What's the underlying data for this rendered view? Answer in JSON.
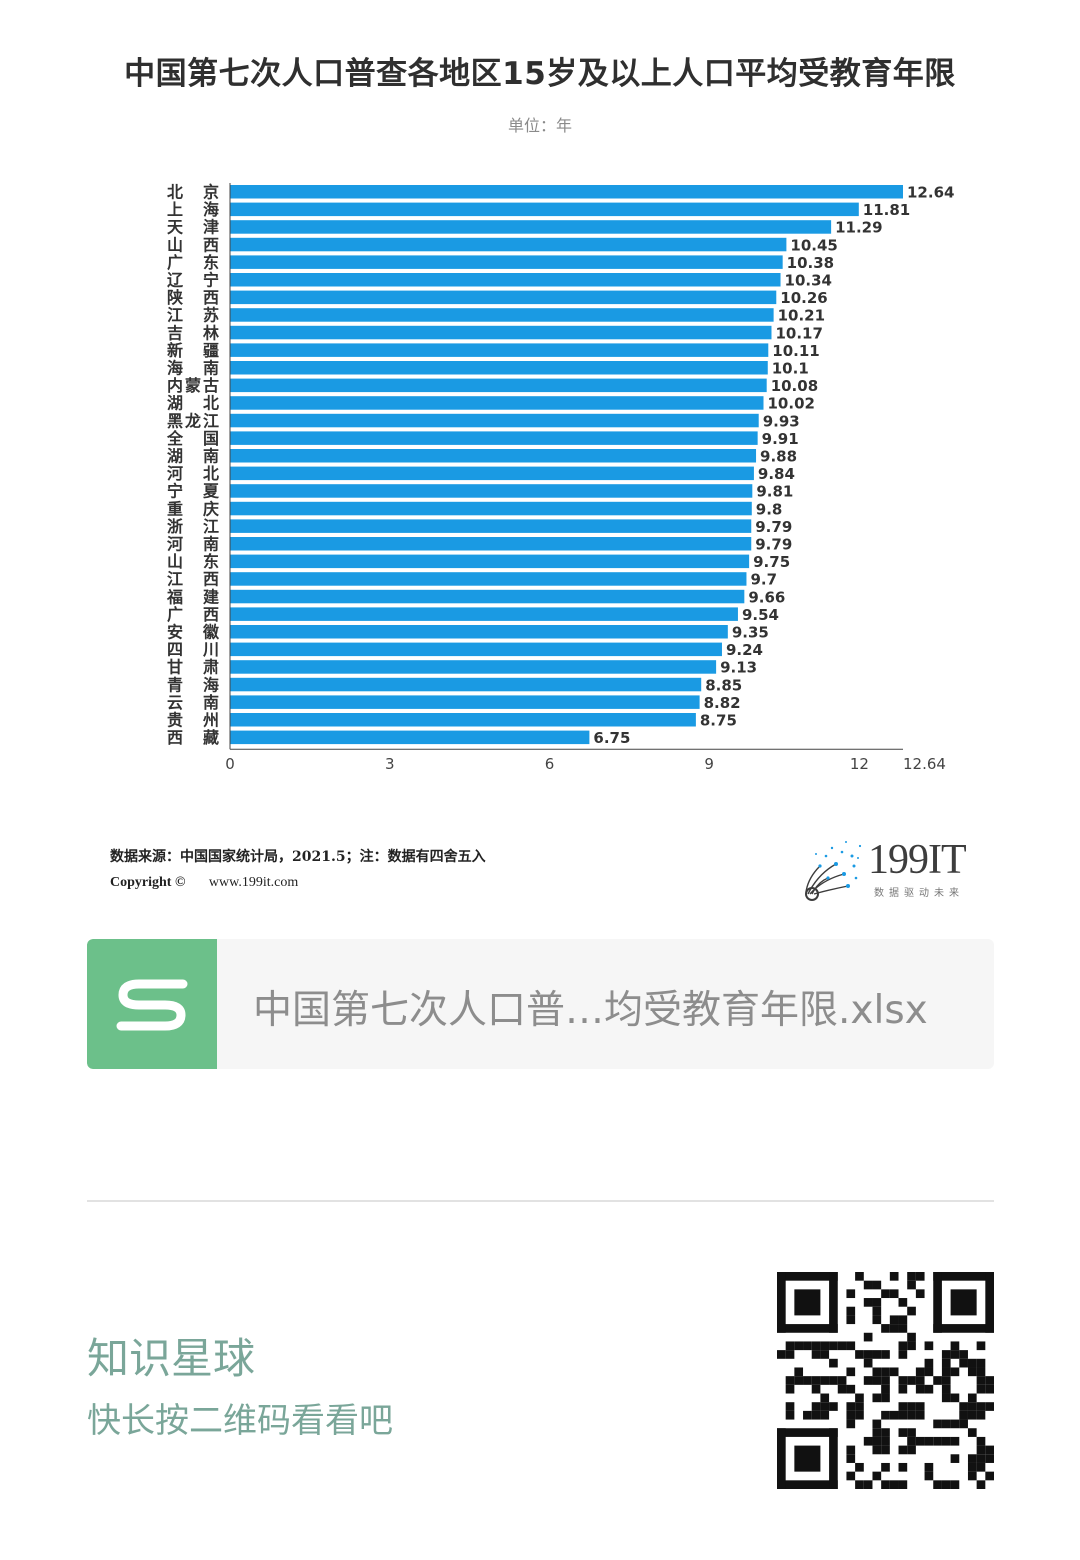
{
  "header": {
    "title": "中国第七次人口普查各地区15岁及以上人口平均受教育年限",
    "unit": "单位：年"
  },
  "chart_data": {
    "type": "bar",
    "orientation": "horizontal",
    "categories": [
      "北京",
      "上海",
      "天津",
      "山西",
      "广东",
      "辽宁",
      "陕西",
      "江苏",
      "吉林",
      "新疆",
      "海南",
      "内蒙古",
      "湖北",
      "黑龙江",
      "全国",
      "湖南",
      "河北",
      "宁夏",
      "重庆",
      "浙江",
      "河南",
      "山东",
      "江西",
      "福建",
      "广西",
      "安徽",
      "四川",
      "甘肃",
      "青海",
      "云南",
      "贵州",
      "西藏"
    ],
    "values": [
      12.64,
      11.81,
      11.29,
      10.45,
      10.38,
      10.34,
      10.26,
      10.21,
      10.17,
      10.11,
      10.1,
      10.08,
      10.02,
      9.93,
      9.91,
      9.88,
      9.84,
      9.81,
      9.8,
      9.79,
      9.79,
      9.75,
      9.7,
      9.66,
      9.54,
      9.35,
      9.24,
      9.13,
      8.85,
      8.82,
      8.75,
      6.75
    ],
    "value_labels": [
      "12.64",
      "11.81",
      "11.29",
      "10.45",
      "10.38",
      "10.34",
      "10.26",
      "10.21",
      "10.17",
      "10.11",
      "10.1",
      "10.08",
      "10.02",
      "9.93",
      "9.91",
      "9.88",
      "9.84",
      "9.81",
      "9.8",
      "9.79",
      "9.79",
      "9.75",
      "9.7",
      "9.66",
      "9.54",
      "9.35",
      "9.24",
      "9.13",
      "8.85",
      "8.82",
      "8.75",
      "6.75"
    ],
    "xlim": [
      0,
      12.64
    ],
    "x_ticks": [
      "0",
      "3",
      "6",
      "9",
      "12",
      "12.64"
    ],
    "bar_color": "#1a9ae3",
    "grid": false
  },
  "footer": {
    "source": "数据来源：中国国家统计局，2021.5；注：数据有四舍五入",
    "copyright_label": "Copyright ©",
    "copyright_url": "www.199it.com"
  },
  "logo": {
    "name": "199IT",
    "tagline": "数据驱动未来",
    "icon": "dandelion-dots-icon",
    "color": "#1a9ae3"
  },
  "file_card": {
    "icon": "spreadsheet-s-icon",
    "icon_color": "#6cc08a",
    "filename": "中国第七次人口普…均受教育年限.xlsx"
  },
  "promo": {
    "title": "知识星球",
    "subtitle": "快长按二维码看看吧",
    "qr_icon": "qr-code-icon"
  }
}
